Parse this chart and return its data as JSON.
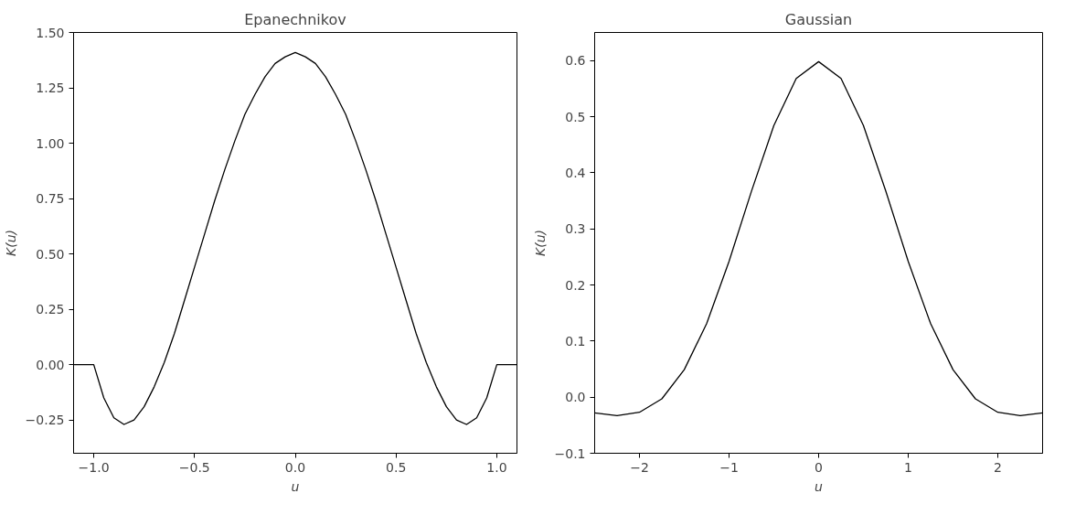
{
  "chart_data": [
    {
      "type": "line",
      "title": "Epanechnikov",
      "xlabel": "u",
      "ylabel": "K(u)",
      "x": [
        -1.1,
        -1.0,
        -0.95,
        -0.9,
        -0.85,
        -0.8,
        -0.75,
        -0.7,
        -0.65,
        -0.6,
        -0.55,
        -0.5,
        -0.45,
        -0.4,
        -0.35,
        -0.3,
        -0.25,
        -0.2,
        -0.15,
        -0.1,
        -0.05,
        0.0,
        0.05,
        0.1,
        0.15,
        0.2,
        0.25,
        0.3,
        0.35,
        0.4,
        0.45,
        0.5,
        0.55,
        0.6,
        0.65,
        0.7,
        0.75,
        0.8,
        0.85,
        0.9,
        0.95,
        1.0,
        1.1
      ],
      "series": [
        {
          "color": "#000000",
          "values": [
            0.0,
            0.0,
            -0.15,
            -0.24,
            -0.27,
            -0.25,
            -0.19,
            -0.1,
            0.01,
            0.14,
            0.29,
            0.44,
            0.59,
            0.74,
            0.88,
            1.01,
            1.13,
            1.22,
            1.3,
            1.36,
            1.39,
            1.41,
            1.39,
            1.36,
            1.3,
            1.22,
            1.13,
            1.01,
            0.88,
            0.74,
            0.59,
            0.44,
            0.29,
            0.14,
            0.01,
            -0.1,
            -0.19,
            -0.25,
            -0.27,
            -0.24,
            -0.15,
            0.0,
            0.0
          ]
        }
      ],
      "xlim": [
        -1.1,
        1.1
      ],
      "ylim": [
        -0.4,
        1.5
      ],
      "xticks": [
        {
          "value": -1.0,
          "label": "−1.0"
        },
        {
          "value": -0.5,
          "label": "−0.5"
        },
        {
          "value": 0.0,
          "label": "0.0"
        },
        {
          "value": 0.5,
          "label": "0.5"
        },
        {
          "value": 1.0,
          "label": "1.0"
        }
      ],
      "yticks": [
        {
          "value": -0.25,
          "label": "−0.25"
        },
        {
          "value": 0,
          "label": "0.00"
        },
        {
          "value": 0.25,
          "label": "0.25"
        },
        {
          "value": 0.5,
          "label": "0.50"
        },
        {
          "value": 0.75,
          "label": "0.75"
        },
        {
          "value": 1.0,
          "label": "1.00"
        },
        {
          "value": 1.25,
          "label": "1.25"
        },
        {
          "value": 1.5,
          "label": "1.50"
        }
      ],
      "grid": false
    },
    {
      "type": "line",
      "title": "Gaussian",
      "xlabel": "u",
      "ylabel": "K(u)",
      "x": [
        -2.5,
        -2.25,
        -2.0,
        -1.75,
        -1.5,
        -1.25,
        -1.0,
        -0.75,
        -0.5,
        -0.25,
        0.0,
        0.25,
        0.5,
        0.75,
        1.0,
        1.25,
        1.5,
        1.75,
        2.0,
        2.25,
        2.5
      ],
      "series": [
        {
          "color": "#000000",
          "values": [
            -0.028,
            -0.033,
            -0.027,
            -0.003,
            0.049,
            0.131,
            0.242,
            0.367,
            0.484,
            0.568,
            0.598,
            0.568,
            0.484,
            0.367,
            0.242,
            0.131,
            0.049,
            -0.003,
            -0.027,
            -0.033,
            -0.028
          ]
        }
      ],
      "xlim": [
        -2.5,
        2.5
      ],
      "ylim": [
        -0.1,
        0.65
      ],
      "xticks": [
        {
          "value": -2,
          "label": "−2"
        },
        {
          "value": -1,
          "label": "−1"
        },
        0,
        1,
        2
      ],
      "yticks": [
        {
          "value": -0.1,
          "label": "−0.1"
        },
        {
          "value": 0,
          "label": "0.0"
        },
        {
          "value": 0.1,
          "label": "0.1"
        },
        {
          "value": 0.2,
          "label": "0.2"
        },
        {
          "value": 0.3,
          "label": "0.3"
        },
        {
          "value": 0.4,
          "label": "0.4"
        },
        {
          "value": 0.5,
          "label": "0.5"
        },
        {
          "value": 0.6,
          "label": "0.6"
        }
      ],
      "grid": false
    }
  ]
}
